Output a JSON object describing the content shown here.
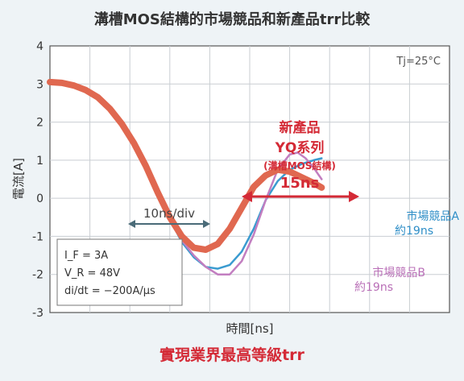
{
  "chart_data": {
    "type": "line",
    "title": "溝槽MOS結構的市場競品和新產品trr比較",
    "xlabel": "時間[ns]",
    "ylabel": "電流[A]",
    "ylim": [
      -3,
      4
    ],
    "yticks": [
      "4",
      "3",
      "2",
      "1",
      "0",
      "-1",
      "-2",
      "-3"
    ],
    "x_grid_divisions": 10,
    "grid": true,
    "condition_label": "Tj=25°C",
    "conditions": {
      "if_line": "I_F = 3A",
      "vr_line": "V_R = 48V",
      "didt_line": "di/dt = −200A/μs"
    },
    "scale_label": "10ns/div",
    "new_product_annotation": {
      "line1": "新產品",
      "line2": "YQ系列",
      "line3": "(溝槽MOS結構)",
      "line4": "15ns"
    },
    "series": [
      {
        "name": "市場競品A",
        "trr_label": "約19ns",
        "color": "#3a9bd0",
        "points": [
          [
            0,
            3.05
          ],
          [
            0.3,
            3.03
          ],
          [
            0.6,
            2.96
          ],
          [
            0.9,
            2.84
          ],
          [
            1.2,
            2.65
          ],
          [
            1.5,
            2.35
          ],
          [
            1.8,
            1.95
          ],
          [
            2.1,
            1.45
          ],
          [
            2.4,
            0.85
          ],
          [
            2.7,
            0.15
          ],
          [
            3.0,
            -0.55
          ],
          [
            3.3,
            -1.15
          ],
          [
            3.6,
            -1.55
          ],
          [
            3.9,
            -1.8
          ],
          [
            4.2,
            -1.85
          ],
          [
            4.5,
            -1.75
          ],
          [
            4.8,
            -1.4
          ],
          [
            5.1,
            -0.8
          ],
          [
            5.4,
            -0.05
          ],
          [
            5.7,
            0.45
          ],
          [
            6.0,
            0.75
          ],
          [
            6.3,
            0.9
          ],
          [
            6.6,
            1.0
          ],
          [
            6.8,
            1.05
          ]
        ]
      },
      {
        "name": "市場競品B",
        "trr_label": "約19ns",
        "color": "#c27ec0",
        "points": [
          [
            0,
            3.05
          ],
          [
            0.3,
            3.03
          ],
          [
            0.6,
            2.96
          ],
          [
            0.9,
            2.84
          ],
          [
            1.2,
            2.65
          ],
          [
            1.5,
            2.35
          ],
          [
            1.8,
            1.95
          ],
          [
            2.1,
            1.45
          ],
          [
            2.4,
            0.85
          ],
          [
            2.7,
            0.15
          ],
          [
            3.0,
            -0.55
          ],
          [
            3.3,
            -1.1
          ],
          [
            3.6,
            -1.5
          ],
          [
            3.9,
            -1.8
          ],
          [
            4.2,
            -2.0
          ],
          [
            4.5,
            -2.0
          ],
          [
            4.8,
            -1.65
          ],
          [
            5.1,
            -0.95
          ],
          [
            5.4,
            -0.05
          ],
          [
            5.7,
            0.75
          ],
          [
            6.0,
            1.15
          ],
          [
            6.2,
            1.2
          ],
          [
            6.4,
            1.05
          ],
          [
            6.6,
            0.8
          ],
          [
            6.8,
            0.5
          ]
        ]
      },
      {
        "name": "新產品 YQ系列",
        "trr_label": "15ns",
        "color": "#e06850",
        "points": [
          [
            0,
            3.05
          ],
          [
            0.3,
            3.03
          ],
          [
            0.6,
            2.96
          ],
          [
            0.9,
            2.84
          ],
          [
            1.2,
            2.65
          ],
          [
            1.5,
            2.35
          ],
          [
            1.8,
            1.95
          ],
          [
            2.1,
            1.45
          ],
          [
            2.4,
            0.85
          ],
          [
            2.7,
            0.15
          ],
          [
            3.0,
            -0.5
          ],
          [
            3.3,
            -1.0
          ],
          [
            3.6,
            -1.3
          ],
          [
            3.9,
            -1.35
          ],
          [
            4.2,
            -1.2
          ],
          [
            4.5,
            -0.8
          ],
          [
            4.8,
            -0.25
          ],
          [
            5.1,
            0.3
          ],
          [
            5.4,
            0.6
          ],
          [
            5.7,
            0.75
          ],
          [
            6.0,
            0.7
          ],
          [
            6.3,
            0.55
          ],
          [
            6.6,
            0.4
          ],
          [
            6.8,
            0.28
          ]
        ]
      }
    ]
  },
  "footer_headline": "實現業界最高等級trr"
}
